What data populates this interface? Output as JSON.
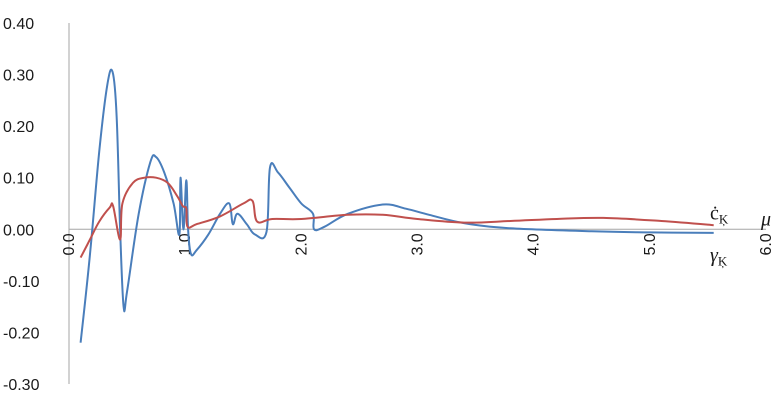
{
  "chart_data": {
    "type": "line",
    "title": "",
    "xlabel": "μ",
    "ylabel": "",
    "xlim": [
      0,
      6
    ],
    "ylim": [
      -0.3,
      0.4
    ],
    "x_ticks": [
      "0.0",
      "1.0",
      "2.0",
      "3.0",
      "4.0",
      "5.0",
      "6.0"
    ],
    "y_ticks": [
      "0.40",
      "0.30",
      "0.20",
      "0.10",
      "0.00",
      "-0.10",
      "-0.20",
      "-0.30"
    ],
    "grid": false,
    "series": [
      {
        "name": "γ",
        "name_sub": "Ķ",
        "color": "#4a7ebb",
        "points": [
          [
            0.1,
            -0.22
          ],
          [
            0.18,
            -0.05
          ],
          [
            0.26,
            0.15
          ],
          [
            0.33,
            0.28
          ],
          [
            0.375,
            0.305
          ],
          [
            0.41,
            0.22
          ],
          [
            0.44,
            0.0
          ],
          [
            0.47,
            -0.15
          ],
          [
            0.5,
            -0.12
          ],
          [
            0.6,
            0.03
          ],
          [
            0.7,
            0.13
          ],
          [
            0.75,
            0.14
          ],
          [
            0.82,
            0.11
          ],
          [
            0.9,
            0.05
          ],
          [
            0.95,
            -0.01
          ],
          [
            0.96,
            0.1
          ],
          [
            0.985,
            0.0
          ],
          [
            1.01,
            0.095
          ],
          [
            1.025,
            0.0
          ],
          [
            1.05,
            -0.048
          ],
          [
            1.1,
            -0.04
          ],
          [
            1.2,
            -0.01
          ],
          [
            1.3,
            0.03
          ],
          [
            1.38,
            0.05
          ],
          [
            1.41,
            0.01
          ],
          [
            1.45,
            0.03
          ],
          [
            1.53,
            0.01
          ],
          [
            1.6,
            -0.01
          ],
          [
            1.7,
            -0.005
          ],
          [
            1.73,
            0.12
          ],
          [
            1.8,
            0.11
          ],
          [
            1.9,
            0.08
          ],
          [
            2.0,
            0.05
          ],
          [
            2.1,
            0.03
          ],
          [
            2.11,
            0.0
          ],
          [
            2.2,
            0.005
          ],
          [
            2.4,
            0.03
          ],
          [
            2.7,
            0.048
          ],
          [
            2.9,
            0.04
          ],
          [
            3.1,
            0.028
          ],
          [
            3.4,
            0.012
          ],
          [
            3.8,
            0.002
          ],
          [
            4.5,
            -0.004
          ],
          [
            5.0,
            -0.006
          ],
          [
            5.55,
            -0.007
          ]
        ]
      },
      {
        "name": "ċ",
        "name_sub": "Ķ",
        "color": "#c0504d",
        "points": [
          [
            0.1,
            -0.055
          ],
          [
            0.18,
            -0.02
          ],
          [
            0.26,
            0.015
          ],
          [
            0.35,
            0.042
          ],
          [
            0.38,
            0.045
          ],
          [
            0.44,
            -0.02
          ],
          [
            0.46,
            0.05
          ],
          [
            0.55,
            0.09
          ],
          [
            0.65,
            0.1
          ],
          [
            0.75,
            0.1
          ],
          [
            0.85,
            0.09
          ],
          [
            0.93,
            0.065
          ],
          [
            0.98,
            0.045
          ],
          [
            1.01,
            0.04
          ],
          [
            1.02,
            0.005
          ],
          [
            1.1,
            0.01
          ],
          [
            1.3,
            0.025
          ],
          [
            1.5,
            0.05
          ],
          [
            1.58,
            0.055
          ],
          [
            1.62,
            0.015
          ],
          [
            1.75,
            0.02
          ],
          [
            2.0,
            0.02
          ],
          [
            2.4,
            0.028
          ],
          [
            2.7,
            0.028
          ],
          [
            3.0,
            0.02
          ],
          [
            3.4,
            0.013
          ],
          [
            3.8,
            0.016
          ],
          [
            4.2,
            0.02
          ],
          [
            4.6,
            0.022
          ],
          [
            5.1,
            0.016
          ],
          [
            5.55,
            0.008
          ]
        ]
      }
    ]
  }
}
